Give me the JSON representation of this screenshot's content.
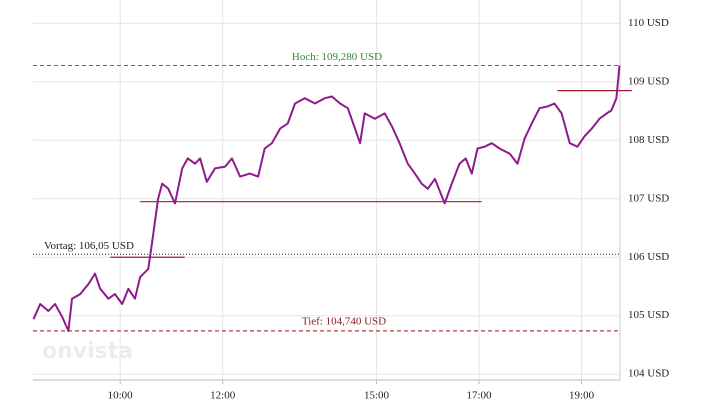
{
  "chart_data": {
    "type": "line",
    "watermark": "onvista",
    "xlim": [
      8.3,
      19.75
    ],
    "ylim": [
      103.9,
      110.4
    ],
    "grid": true,
    "xticks": [
      {
        "value": 10,
        "label": "10:00"
      },
      {
        "value": 12,
        "label": "12:00"
      },
      {
        "value": 15,
        "label": "15:00"
      },
      {
        "value": 17,
        "label": "17:00"
      },
      {
        "value": 19,
        "label": "19:00"
      }
    ],
    "yticks": [
      {
        "value": 104,
        "label": "104 USD"
      },
      {
        "value": 105,
        "label": "105 USD"
      },
      {
        "value": 106,
        "label": "106 USD"
      },
      {
        "value": 107,
        "label": "107 USD"
      },
      {
        "value": 108,
        "label": "108 USD"
      },
      {
        "value": 109,
        "label": "109 USD"
      },
      {
        "value": 110,
        "label": "110 USD"
      }
    ],
    "reference_lines": [
      {
        "label": "Hoch: 109,280 USD",
        "value": 109.28,
        "color": "#2e8b2e",
        "style": "dashed"
      },
      {
        "label": "Vortag: 106,05 USD",
        "value": 106.05,
        "color": "#222222",
        "style": "dotted"
      },
      {
        "label": "Tief: 104,740 USD",
        "value": 104.74,
        "color": "#8b1a1a",
        "style": "dashed"
      }
    ],
    "levels": [
      {
        "y": 106.95,
        "x": [
          10.39,
          17.05
        ],
        "color": "#a01c2c"
      },
      {
        "y": 106.0,
        "x": [
          9.81,
          11.26
        ],
        "color": "#a01c2c"
      },
      {
        "y": 108.85,
        "x": [
          18.53,
          19.98
        ],
        "color": "#a01c2c"
      }
    ],
    "series": [
      {
        "color": "#8e1b8e",
        "x": [
          8.31,
          8.44,
          8.6,
          8.73,
          8.87,
          8.99,
          9.06,
          9.22,
          9.38,
          9.51,
          9.61,
          9.77,
          9.9,
          10.04,
          10.16,
          10.29,
          10.39,
          10.55,
          10.62,
          10.74,
          10.82,
          10.94,
          11.07,
          11.21,
          11.32,
          11.46,
          11.56,
          11.69,
          11.85,
          12.05,
          12.18,
          12.34,
          12.53,
          12.69,
          12.82,
          12.96,
          13.12,
          13.27,
          13.41,
          13.6,
          13.8,
          13.99,
          14.13,
          14.29,
          14.44,
          14.58,
          14.68,
          14.77,
          14.97,
          15.16,
          15.3,
          15.45,
          15.61,
          15.75,
          15.88,
          16.0,
          16.14,
          16.33,
          16.47,
          16.62,
          16.74,
          16.86,
          16.97,
          17.11,
          17.25,
          17.4,
          17.6,
          17.75,
          17.89,
          18.03,
          18.18,
          18.34,
          18.47,
          18.61,
          18.77,
          18.92,
          19.06,
          19.2,
          19.35,
          19.49,
          19.58,
          19.68,
          19.74
        ],
        "values": [
          104.94,
          105.2,
          105.08,
          105.2,
          104.98,
          104.74,
          105.29,
          105.37,
          105.54,
          105.72,
          105.46,
          105.29,
          105.37,
          105.2,
          105.46,
          105.29,
          105.66,
          105.8,
          106.23,
          107.0,
          107.26,
          107.17,
          106.92,
          107.52,
          107.69,
          107.6,
          107.69,
          107.29,
          107.52,
          107.55,
          107.69,
          107.38,
          107.43,
          107.38,
          107.86,
          107.95,
          108.2,
          108.29,
          108.63,
          108.72,
          108.63,
          108.72,
          108.75,
          108.63,
          108.55,
          108.2,
          107.95,
          108.46,
          108.37,
          108.46,
          108.24,
          107.95,
          107.6,
          107.43,
          107.26,
          107.17,
          107.34,
          106.92,
          107.26,
          107.6,
          107.69,
          107.43,
          107.86,
          107.89,
          107.95,
          107.86,
          107.77,
          107.6,
          108.03,
          108.29,
          108.55,
          108.58,
          108.63,
          108.46,
          107.95,
          107.89,
          108.07,
          108.2,
          108.37,
          108.46,
          108.51,
          108.72,
          109.28
        ]
      }
    ]
  }
}
